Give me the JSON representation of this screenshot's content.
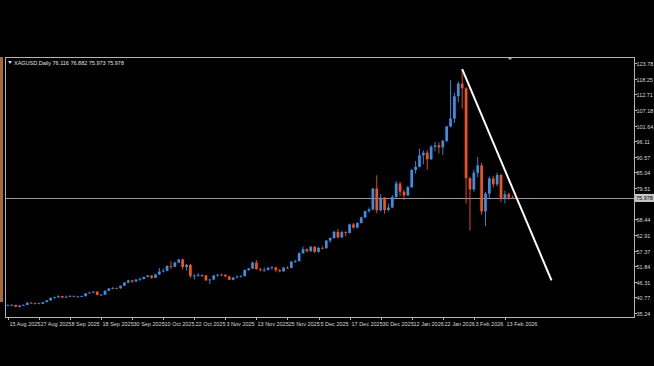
{
  "chart_data": {
    "type": "candlestick",
    "title": "XAGUSD,Daily  76.116 76.882 75.973 75.978",
    "categories": [
      "15 Aug 2025",
      null,
      null,
      null,
      null,
      null,
      null,
      null,
      "27 Aug 2025",
      null,
      null,
      null,
      null,
      null,
      null,
      null,
      "8 Sep 2025",
      null,
      null,
      null,
      null,
      null,
      null,
      null,
      "18 Sep 2025",
      null,
      null,
      null,
      null,
      null,
      null,
      null,
      "30 Sep 2025",
      null,
      null,
      null,
      null,
      null,
      null,
      null,
      "10 Oct 2025",
      null,
      null,
      null,
      null,
      null,
      null,
      null,
      "22 Oct 2025",
      null,
      null,
      null,
      null,
      null,
      null,
      null,
      "3 Nov 2025",
      null,
      null,
      null,
      null,
      null,
      null,
      null,
      "13 Nov 2025",
      null,
      null,
      null,
      null,
      null,
      null,
      null,
      "25 Nov 2025",
      null,
      null,
      null,
      null,
      null,
      null,
      null,
      "5 Dec 2025",
      null,
      null,
      null,
      null,
      null,
      null,
      null,
      "17 Dec 2025",
      null,
      null,
      null,
      null,
      null,
      null,
      null,
      "30 Dec 2025",
      null,
      null,
      null,
      null,
      null,
      null,
      null,
      "12 Jan 2026",
      null,
      null,
      null,
      null,
      null,
      null,
      null,
      "22 Jan 2026",
      null,
      null,
      null,
      null,
      null,
      null,
      null,
      "3 Feb 2026",
      null,
      null,
      null,
      null,
      null,
      null,
      null,
      "13 Feb 2026",
      null,
      null
    ],
    "open": [
      37.9,
      38.0,
      38.1,
      37.4,
      37.9,
      38.1,
      38.9,
      38.6,
      38.7,
      38.5,
      39.1,
      39.7,
      40.6,
      40.8,
      41.2,
      40.7,
      41.0,
      41.3,
      41.0,
      41.1,
      41.2,
      42.2,
      42.5,
      42.8,
      41.6,
      41.7,
      43.1,
      43.9,
      44.1,
      44.0,
      44.9,
      46.0,
      46.8,
      46.4,
      47.1,
      47.3,
      48.0,
      48.5,
      47.7,
      48.9,
      49.9,
      50.2,
      51.9,
      51.6,
      53.1,
      54.2,
      51.5,
      52.3,
      48.4,
      48.5,
      48.6,
      48.6,
      46.8,
      47.1,
      48.5,
      48.8,
      48.7,
      48.2,
      47.0,
      47.8,
      48.1,
      48.3,
      50.5,
      51.0,
      53.1,
      50.8,
      50.5,
      50.5,
      51.2,
      51.4,
      50.4,
      50.0,
      51.3,
      51.2,
      53.4,
      53.6,
      56.4,
      57.8,
      57.1,
      58.7,
      56.9,
      58.3,
      58.2,
      60.9,
      61.8,
      64.0,
      62.0,
      63.9,
      63.6,
      66.6,
      65.5,
      67.1,
      69.1,
      71.3,
      71.9,
      79.3,
      71.6,
      76.1,
      71.7,
      72.6,
      76.3,
      81.1,
      78.2,
      76.9,
      79.8,
      85.9,
      87.0,
      91.1,
      92.0,
      89.7,
      94.1,
      94.6,
      93.9,
      96.2,
      101.3,
      104.1,
      112.0,
      116.5,
      114.8,
      83.0,
      79.0,
      84.9,
      87.5,
      71.2,
      77.5,
      82.9,
      80.8,
      84.1,
      75.6,
      77.3,
      76.116
    ],
    "high": [
      38.3,
      38.4,
      38.2,
      38.0,
      38.3,
      39.0,
      39.1,
      38.9,
      38.9,
      39.2,
      39.8,
      40.7,
      41.0,
      41.5,
      41.3,
      41.4,
      41.5,
      41.4,
      41.3,
      41.4,
      42.3,
      42.7,
      43.0,
      42.9,
      42.0,
      43.2,
      44.1,
      44.5,
      44.3,
      45.0,
      46.2,
      47.0,
      47.0,
      47.3,
      47.8,
      48.1,
      48.7,
      48.6,
      49.1,
      51.2,
      51.0,
      52.1,
      53.6,
      53.4,
      54.4,
      54.5,
      52.6,
      52.6,
      49.0,
      49.4,
      49.0,
      48.7,
      47.3,
      48.7,
      49.1,
      49.2,
      49.0,
      48.4,
      48.0,
      48.6,
      48.6,
      50.6,
      51.2,
      53.4,
      54.0,
      51.3,
      51.4,
      51.6,
      51.9,
      51.6,
      50.8,
      51.5,
      51.8,
      53.6,
      54.1,
      56.8,
      58.8,
      58.1,
      59.0,
      58.9,
      58.7,
      58.9,
      61.0,
      62.0,
      64.3,
      65.0,
      64.4,
      64.2,
      66.9,
      67.2,
      67.4,
      69.4,
      71.5,
      72.6,
      79.5,
      84.0,
      77.4,
      76.3,
      74.0,
      77.0,
      82.0,
      81.6,
      78.9,
      80.3,
      86.3,
      89.1,
      93.5,
      92.8,
      93.0,
      94.7,
      95.9,
      95.7,
      96.6,
      101.5,
      117.7,
      113.2,
      117.2,
      121.6,
      115.2,
      83.5,
      86.0,
      90.5,
      88.5,
      78.1,
      83.6,
      83.8,
      84.9,
      84.6,
      78.6,
      77.9,
      76.882
    ],
    "low": [
      37.6,
      37.8,
      37.3,
      37.2,
      37.8,
      38.0,
      38.5,
      38.3,
      38.3,
      38.4,
      39.0,
      39.6,
      40.3,
      40.7,
      40.5,
      40.6,
      40.9,
      40.8,
      40.7,
      40.9,
      41.1,
      42.1,
      42.3,
      41.5,
      41.4,
      41.6,
      43.0,
      43.6,
      43.7,
      43.8,
      44.8,
      45.9,
      45.8,
      46.2,
      46.6,
      47.1,
      47.9,
      47.4,
      47.6,
      48.7,
      49.6,
      50.0,
      50.7,
      51.4,
      52.9,
      50.6,
      50.3,
      47.6,
      47.1,
      48.1,
      48.0,
      46.6,
      45.5,
      46.9,
      48.1,
      48.3,
      47.9,
      46.9,
      46.8,
      47.6,
      47.8,
      48.2,
      50.1,
      50.8,
      50.6,
      49.9,
      49.8,
      50.3,
      50.6,
      49.7,
      49.6,
      49.9,
      50.8,
      51.1,
      53.0,
      53.5,
      56.2,
      56.6,
      56.9,
      56.5,
      56.6,
      57.8,
      58.0,
      60.2,
      61.5,
      61.6,
      61.8,
      62.4,
      63.4,
      65.1,
      65.2,
      66.9,
      68.8,
      70.8,
      71.6,
      70.5,
      71.2,
      70.4,
      71.2,
      72.3,
      76.0,
      76.6,
      75.2,
      76.6,
      79.5,
      84.6,
      86.8,
      87.9,
      86.0,
      89.4,
      92.5,
      91.7,
      91.2,
      95.8,
      101.0,
      102.5,
      109.9,
      107.6,
      74.0,
      64.4,
      78.2,
      83.3,
      70.0,
      66.0,
      76.0,
      79.6,
      80.1,
      74.5,
      74.0,
      75.4,
      75.973
    ],
    "close": [
      38.0,
      38.1,
      37.4,
      37.9,
      38.1,
      38.9,
      38.6,
      38.7,
      38.5,
      39.1,
      39.7,
      40.6,
      40.8,
      41.2,
      40.7,
      41.0,
      41.3,
      41.0,
      41.1,
      41.2,
      42.2,
      42.5,
      42.8,
      41.6,
      41.7,
      43.1,
      43.9,
      44.1,
      44.0,
      44.9,
      46.0,
      46.8,
      46.4,
      47.1,
      47.3,
      48.0,
      48.5,
      47.7,
      48.9,
      49.9,
      50.2,
      51.9,
      51.6,
      53.1,
      54.2,
      51.5,
      52.3,
      48.4,
      48.5,
      48.6,
      48.6,
      46.8,
      47.1,
      48.5,
      48.8,
      48.7,
      48.2,
      47.0,
      47.8,
      48.1,
      48.3,
      50.5,
      51.0,
      53.1,
      50.8,
      50.5,
      50.5,
      51.2,
      51.4,
      50.4,
      50.0,
      51.3,
      51.2,
      53.4,
      53.6,
      56.4,
      57.8,
      57.1,
      58.7,
      56.9,
      58.3,
      58.2,
      60.9,
      61.8,
      64.0,
      62.0,
      63.9,
      63.6,
      66.6,
      65.5,
      67.1,
      69.1,
      71.3,
      71.9,
      79.3,
      71.6,
      76.1,
      71.7,
      72.6,
      76.3,
      81.1,
      78.2,
      76.9,
      79.8,
      85.9,
      87.0,
      91.1,
      92.0,
      89.7,
      94.1,
      94.6,
      93.9,
      96.2,
      101.3,
      104.1,
      112.0,
      116.5,
      114.8,
      83.0,
      79.0,
      84.9,
      87.5,
      71.2,
      77.5,
      82.9,
      80.8,
      84.1,
      75.6,
      77.3,
      76.1,
      75.978
    ],
    "ylim": [
      33.82,
      125.9
    ],
    "yticks": [
      123.78,
      118.25,
      112.71,
      107.18,
      101.64,
      96.11,
      90.57,
      85.04,
      79.51,
      68.44,
      62.91,
      57.37,
      51.84,
      46.31,
      40.77,
      35.24
    ],
    "grid": false,
    "current_price": 75.978,
    "trend_line": {
      "x": [
        117,
        140
      ],
      "y": [
        121.6,
        46.8
      ]
    }
  }
}
